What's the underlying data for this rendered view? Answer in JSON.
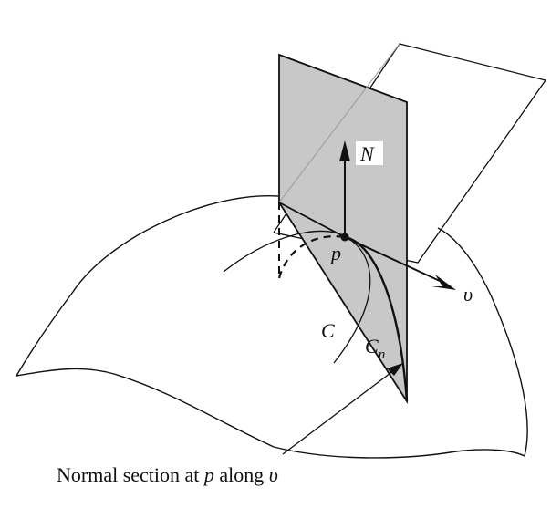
{
  "figure": {
    "labels": {
      "normal": "N",
      "point": "p",
      "direction": "υ",
      "curve": "C",
      "normal_section_main": "C",
      "normal_section_sub": "n"
    },
    "caption": {
      "prefix": "Normal section at ",
      "point": "p",
      "middle": " along ",
      "direction": "υ"
    },
    "colors": {
      "plane_fill": "#c8c8c8",
      "line": "#111111"
    }
  }
}
